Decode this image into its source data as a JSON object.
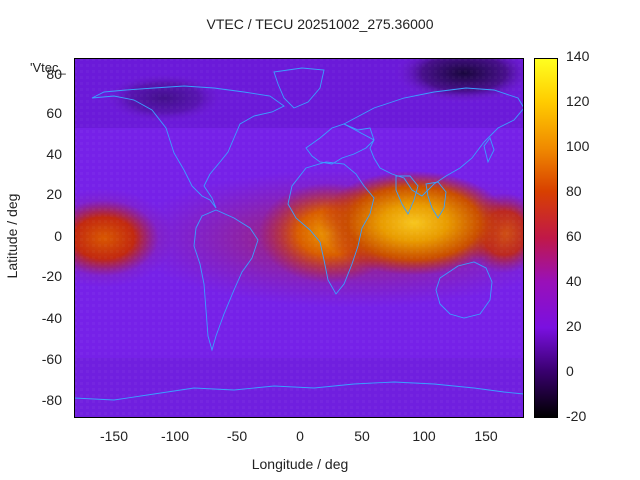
{
  "title": "VTEC / TECU 20251002_275.36000",
  "legend_key": "'Vtec_",
  "xlabel": "Longitude / deg",
  "ylabel": "Latitude / deg",
  "xticks": [
    "-150",
    "-100",
    "-50",
    "0",
    "50",
    "100",
    "150"
  ],
  "yticks": [
    "80",
    "60",
    "40",
    "20",
    "0",
    "-20",
    "-40",
    "-60",
    "-80"
  ],
  "cticks": [
    "140",
    "120",
    "100",
    "80",
    "60",
    "40",
    "20",
    "0",
    "-20"
  ],
  "colors": {
    "coastline": "#3aa0ff",
    "low": "#000000",
    "mid": "#8a2be2",
    "high": "#ffff00"
  },
  "chart_data": {
    "type": "heatmap",
    "title": "VTEC / TECU 20251002_275.36000",
    "xlabel": "Longitude / deg",
    "ylabel": "Latitude / deg",
    "xlim": [
      -180,
      180
    ],
    "ylim": [
      -90,
      90
    ],
    "clim": [
      -20,
      140
    ],
    "colormap": "gnuplot-pm3d (black-purple-red-orange-yellow)",
    "description": "Global vertical total electron content; peak ~100-110 TECU over Africa/Indian Ocean/southern Asia near equator, secondary maximum ~70 TECU over eastern Pacific, low ~0-10 TECU at high northern latitudes near 130E"
  }
}
